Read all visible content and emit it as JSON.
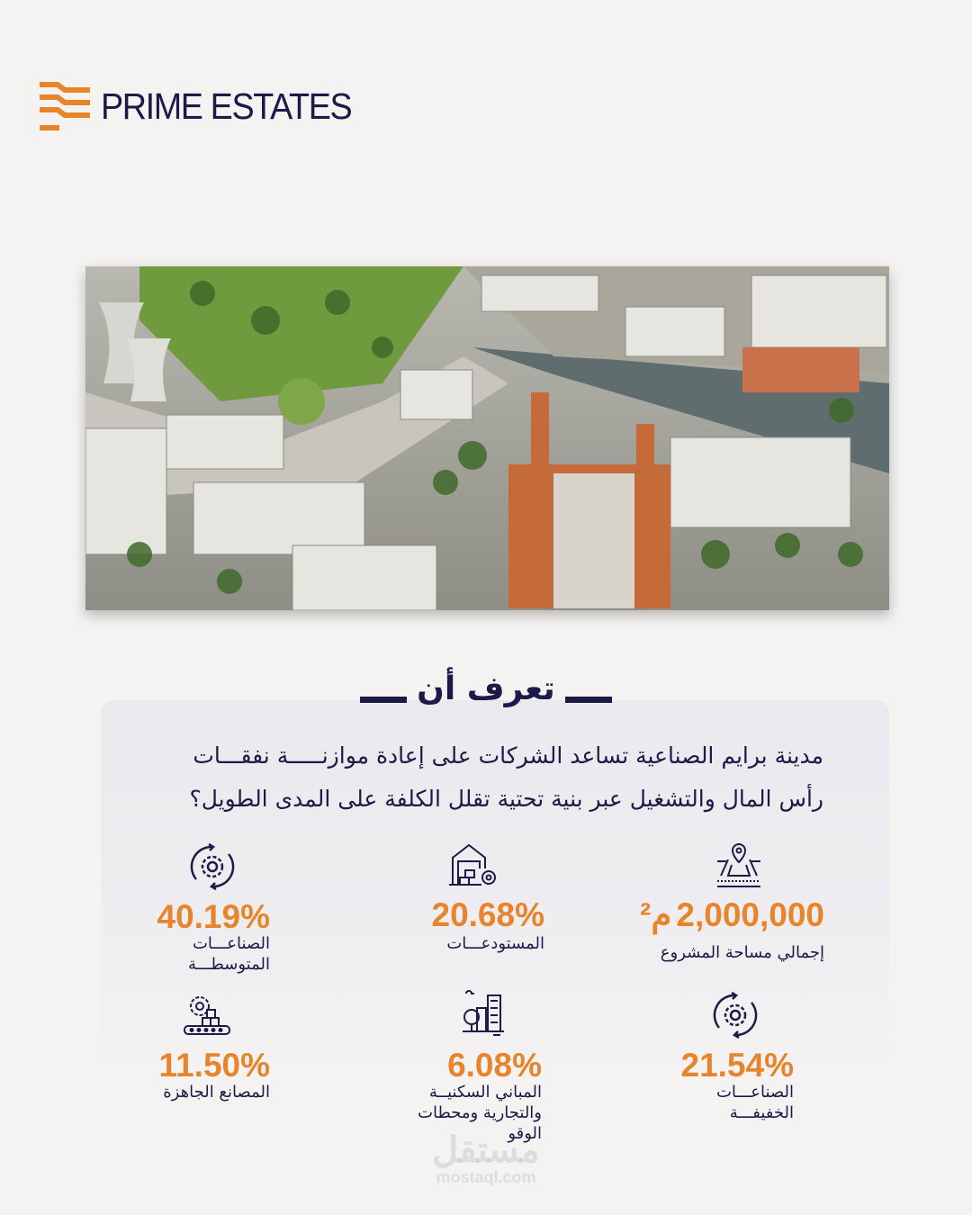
{
  "brand": {
    "name": "PRIME ESTATES",
    "accent": "#e8842c",
    "navy": "#1c1a48"
  },
  "hero": {
    "image": "aerial-industrial-city-render"
  },
  "section": {
    "title": "تعرف أن",
    "paragraph": [
      "مدينة برايم الصناعية تساعد الشركات على إعادة موازنـــــة نفقـــات",
      "رأس المال والتشغيل عبر بنية تحتية تقلل الكلفة على المدى الطويل؟"
    ]
  },
  "stats": [
    {
      "icon": "land-area-pin-icon",
      "value": "2,000,000",
      "unit": "م²",
      "label": [
        "إجمالي مساحة المشروع"
      ]
    },
    {
      "icon": "warehouse-icon",
      "value": "20.68%",
      "label": [
        "المستودعـــات"
      ]
    },
    {
      "icon": "gear-cycle-icon",
      "value": "40.19%",
      "label": [
        "الصناعـــات",
        "المتوسطـــة"
      ]
    },
    {
      "icon": "gear-cycle-icon",
      "value": "21.54%",
      "label": [
        "الصناعـــات",
        "الخفيفـــة"
      ]
    },
    {
      "icon": "city-buildings-icon",
      "value": "6.08%",
      "label": [
        "المباني السكنيــة",
        "والتجارية ومحطات",
        "الوقو"
      ]
    },
    {
      "icon": "factory-conveyor-icon",
      "value": "11.50%",
      "label": [
        "المصانع الجاهزة"
      ]
    }
  ],
  "watermark": {
    "arabic": "مستقل",
    "site": "mostaql.com"
  }
}
